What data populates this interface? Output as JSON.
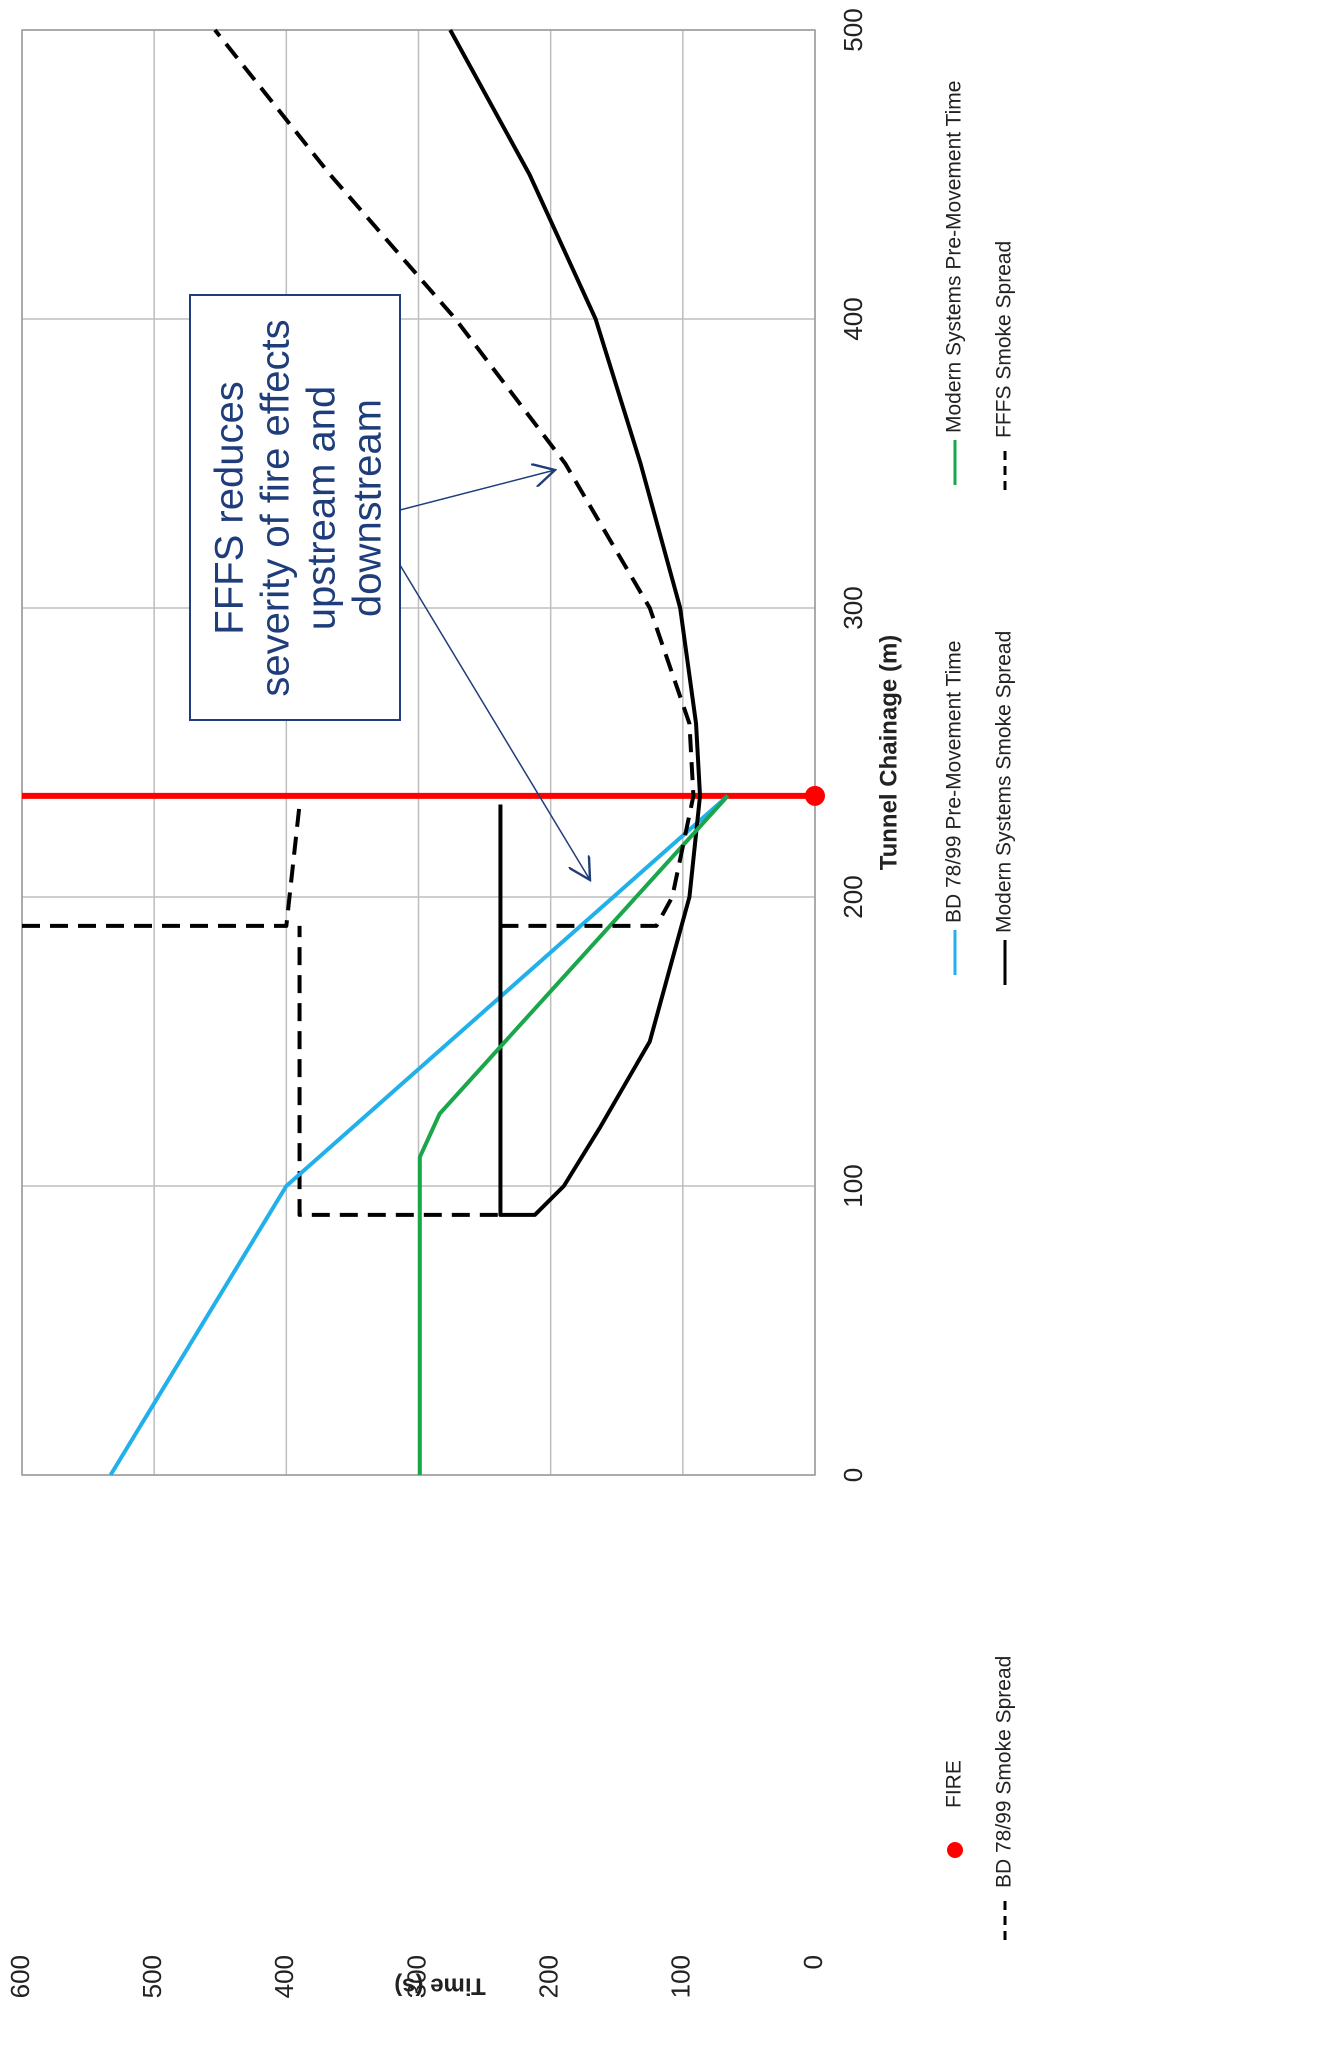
{
  "chart_data": {
    "type": "line",
    "x_label": "Tunnel Chainage (m)",
    "y_label": "Time (s)",
    "xlim": [
      0,
      500
    ],
    "ylim": [
      0,
      600
    ],
    "xticks": [
      0,
      100,
      200,
      300,
      400,
      500
    ],
    "yticks": [
      0,
      100,
      200,
      300,
      400,
      500,
      600
    ],
    "grid": true,
    "series": [
      {
        "name": "FIRE",
        "color": "#ff0000",
        "marker": "fire",
        "x": [
          235
        ],
        "values": [
          0
        ]
      },
      {
        "name": "BD 78/99 Smoke Spread",
        "color": "#000000",
        "dash": true,
        "x": [
          90,
          90,
          190,
          190,
          190,
          190,
          232
        ],
        "values": [
          240,
          390,
          390,
          null,
          600,
          400,
          390
        ]
      },
      {
        "name": "BD 78/99 Pre-Movement Time",
        "color": "#21b0ea",
        "x": [
          0,
          100,
          235
        ],
        "values": [
          533,
          400,
          66
        ]
      },
      {
        "name": "Modern Systems Smoke Spread",
        "color": "#000000",
        "x": [
          232,
          90,
          90,
          100,
          120,
          150,
          200,
          235,
          260,
          300,
          350,
          400,
          450,
          500
        ],
        "values": [
          238,
          238,
          212,
          190,
          163,
          125,
          95,
          87,
          90,
          102,
          132,
          166,
          216,
          276
        ]
      },
      {
        "name": "Modern Systems Pre-Movement Time",
        "color": "#1aa64a",
        "x": [
          0,
          110,
          125,
          235
        ],
        "values": [
          299,
          299,
          284,
          66
        ]
      },
      {
        "name": "FFFS Smoke Spread",
        "color": "#000000",
        "dash": true,
        "x": [
          190,
          190,
          200,
          235,
          260,
          300,
          350,
          400,
          450,
          500
        ],
        "values": [
          238,
          120,
          108,
          92,
          95,
          125,
          189,
          272,
          367,
          454
        ]
      }
    ],
    "annotation": {
      "lines": [
        "FFFS reduces",
        "severity of fire effects",
        "upstream and",
        "downstream"
      ]
    }
  }
}
